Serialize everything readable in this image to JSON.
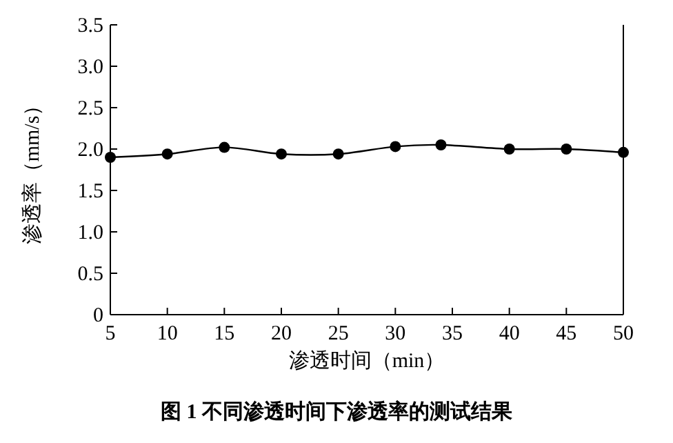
{
  "chart_data": {
    "type": "line",
    "xlabel": "渗透时间（min）",
    "ylabel": "渗透率（mm/s）",
    "annotations": [
      "图 1 不同渗透时间下渗透率的测试结果"
    ],
    "x": [
      5,
      10,
      15,
      20,
      25,
      30,
      34,
      40,
      45,
      50
    ],
    "series": [
      {
        "color": "#000000",
        "values": [
          1.9,
          1.94,
          2.02,
          1.94,
          1.94,
          2.03,
          2.05,
          2.0,
          2.0,
          1.96
        ]
      }
    ],
    "xlim": [
      5,
      50
    ],
    "xticks": [
      5,
      10,
      15,
      20,
      25,
      30,
      35,
      40,
      45,
      50
    ],
    "ylim": [
      0,
      3.5
    ],
    "yticks": [
      {
        "value": 0,
        "label": "0"
      },
      {
        "value": 0.5,
        "label": "0.5"
      },
      {
        "value": 1,
        "label": "1.0"
      },
      {
        "value": 1.5,
        "label": "1.5"
      },
      {
        "value": 2,
        "label": "2.0"
      },
      {
        "value": 2.5,
        "label": "2.5"
      },
      {
        "value": 3,
        "label": "3.0"
      },
      {
        "value": 3.5,
        "label": "3.5"
      }
    ],
    "marker": "circle",
    "line_style": "solid",
    "grid": false
  }
}
